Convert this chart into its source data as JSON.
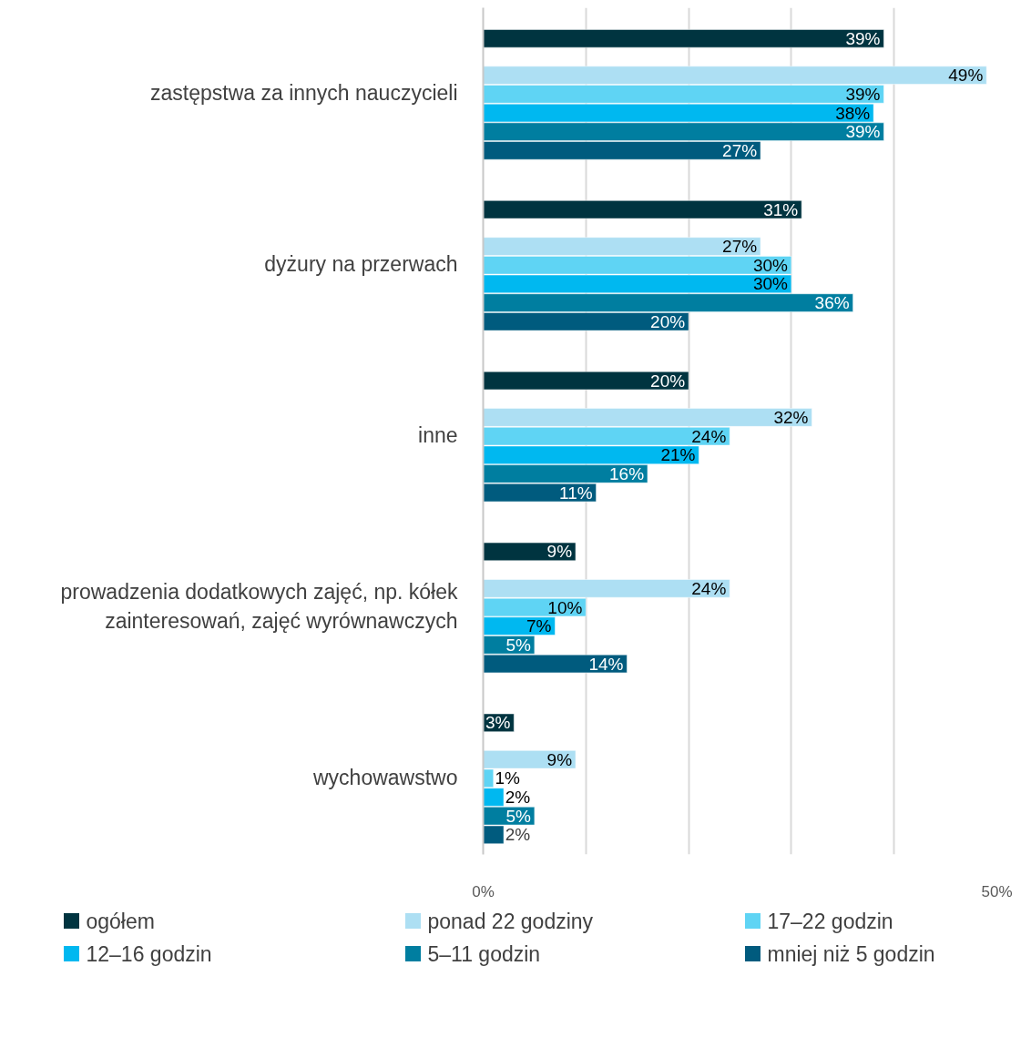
{
  "chart_data": {
    "type": "bar",
    "orientation": "horizontal",
    "categories": [
      "zastępstwa za innych nauczycieli",
      "dyżury na przerwach",
      "inne",
      "prowadzenia dodatkowych zajęć, np. kółek zainteresowań, zajęć wyrównawczych",
      "wychowawstwo"
    ],
    "series": [
      {
        "name": "ogółem",
        "color": "#003440",
        "values": [
          39,
          31,
          20,
          9,
          3
        ],
        "value_labels": [
          "39%",
          "31%",
          "20%",
          "9%",
          "3%"
        ]
      },
      {
        "name": "ponad 22 godziny",
        "color": "#addff3",
        "values": [
          49,
          27,
          32,
          24,
          9
        ],
        "value_labels": [
          "49%",
          "27%",
          "32%",
          "24%",
          "9%"
        ]
      },
      {
        "name": "17–22 godzin",
        "color": "#5fd4f4",
        "values": [
          39,
          30,
          24,
          10,
          1
        ],
        "value_labels": [
          "39%",
          "30%",
          "24%",
          "10%",
          "1%"
        ]
      },
      {
        "name": "12–16 godzin",
        "color": "#00b8f0",
        "values": [
          38,
          30,
          21,
          7,
          2
        ],
        "value_labels": [
          "38%",
          "30%",
          "21%",
          "7%",
          "2%"
        ]
      },
      {
        "name": "5–11 godzin",
        "color": "#007ea0",
        "values": [
          39,
          36,
          16,
          5,
          5
        ],
        "value_labels": [
          "39%",
          "36%",
          "16%",
          "5%",
          "5%"
        ]
      },
      {
        "name": "mniej niż 5 godzin",
        "color": "#005b7e",
        "values": [
          27,
          20,
          11,
          14,
          2
        ],
        "value_labels": [
          "27%",
          "20%",
          "11%",
          "14%",
          "2%"
        ]
      }
    ],
    "xlim": [
      0,
      50
    ],
    "xticks": [
      {
        "value": 0,
        "label": "0%"
      },
      {
        "value": 10,
        "label": null
      },
      {
        "value": 20,
        "label": null
      },
      {
        "value": 30,
        "label": null
      },
      {
        "value": 40,
        "label": null
      },
      {
        "value": 50,
        "label": "50%"
      }
    ],
    "grid": "x",
    "legend": "bottom"
  }
}
